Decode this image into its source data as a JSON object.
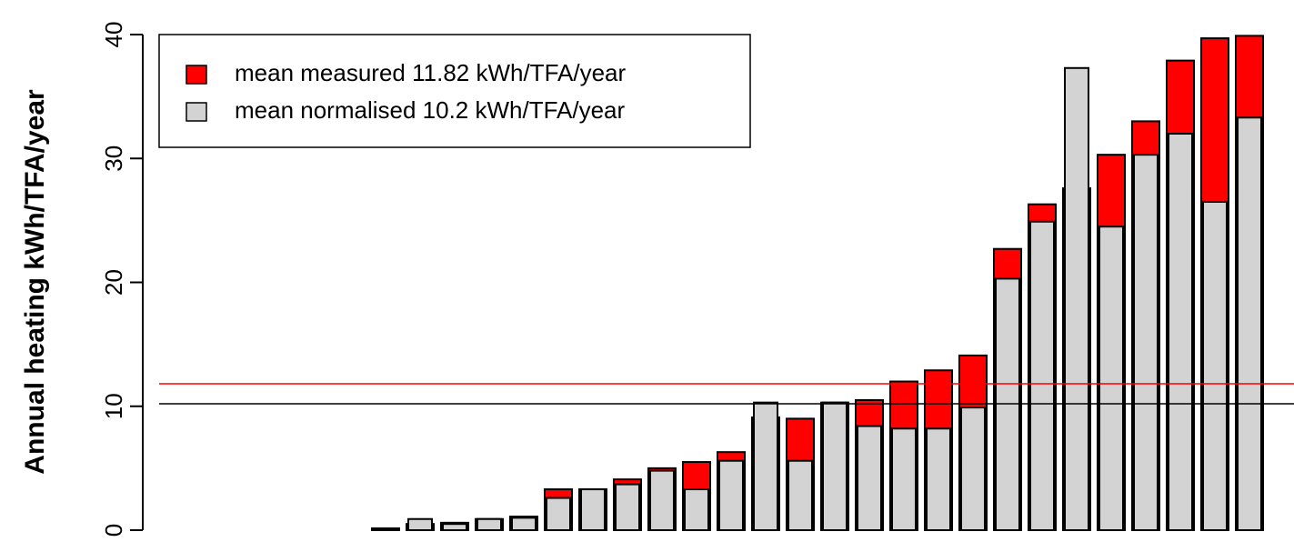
{
  "chart_data": {
    "type": "overlapping_bar",
    "y_label": "Annual heating kWh/TFA/year",
    "categories": [
      null,
      null,
      null,
      null,
      null,
      null,
      null,
      null,
      null,
      null,
      null,
      null,
      null,
      null,
      null,
      null,
      null,
      null,
      null,
      null,
      null,
      null,
      null,
      null,
      null,
      null,
      null,
      null,
      null,
      null,
      null
    ],
    "series": [
      {
        "name": "mean measured 11.82 kWh/TFA/year",
        "color": "#ff0000",
        "values": [
          0,
          0,
          0,
          0,
          0,
          0.15,
          0.5,
          0.6,
          0.9,
          1.1,
          3.3,
          3.3,
          4.1,
          5.0,
          5.5,
          6.3,
          9.1,
          9.0,
          10.3,
          10.5,
          12.0,
          12.9,
          14.1,
          22.7,
          26.3,
          27.6,
          30.3,
          33.0,
          37.9,
          39.7,
          39.9
        ]
      },
      {
        "name": "mean normalised 10.2 kWh/TFA/year",
        "color": "#d3d3d3",
        "values": [
          0,
          0,
          0,
          0,
          0,
          0.1,
          0.9,
          0.5,
          0.9,
          1.0,
          2.6,
          3.3,
          3.7,
          4.8,
          3.3,
          5.6,
          10.3,
          5.6,
          10.3,
          8.4,
          8.2,
          8.2,
          9.9,
          20.3,
          24.9,
          37.3,
          24.5,
          30.3,
          32.0,
          26.5,
          33.3
        ]
      }
    ],
    "reference_lines": [
      {
        "value": 11.82,
        "color": "#ff0000"
      },
      {
        "value": 10.2,
        "color": "#000000"
      }
    ],
    "ylim": [
      0,
      40
    ],
    "yticks": [
      0,
      10,
      20,
      30,
      40
    ],
    "legend": "top-left"
  }
}
